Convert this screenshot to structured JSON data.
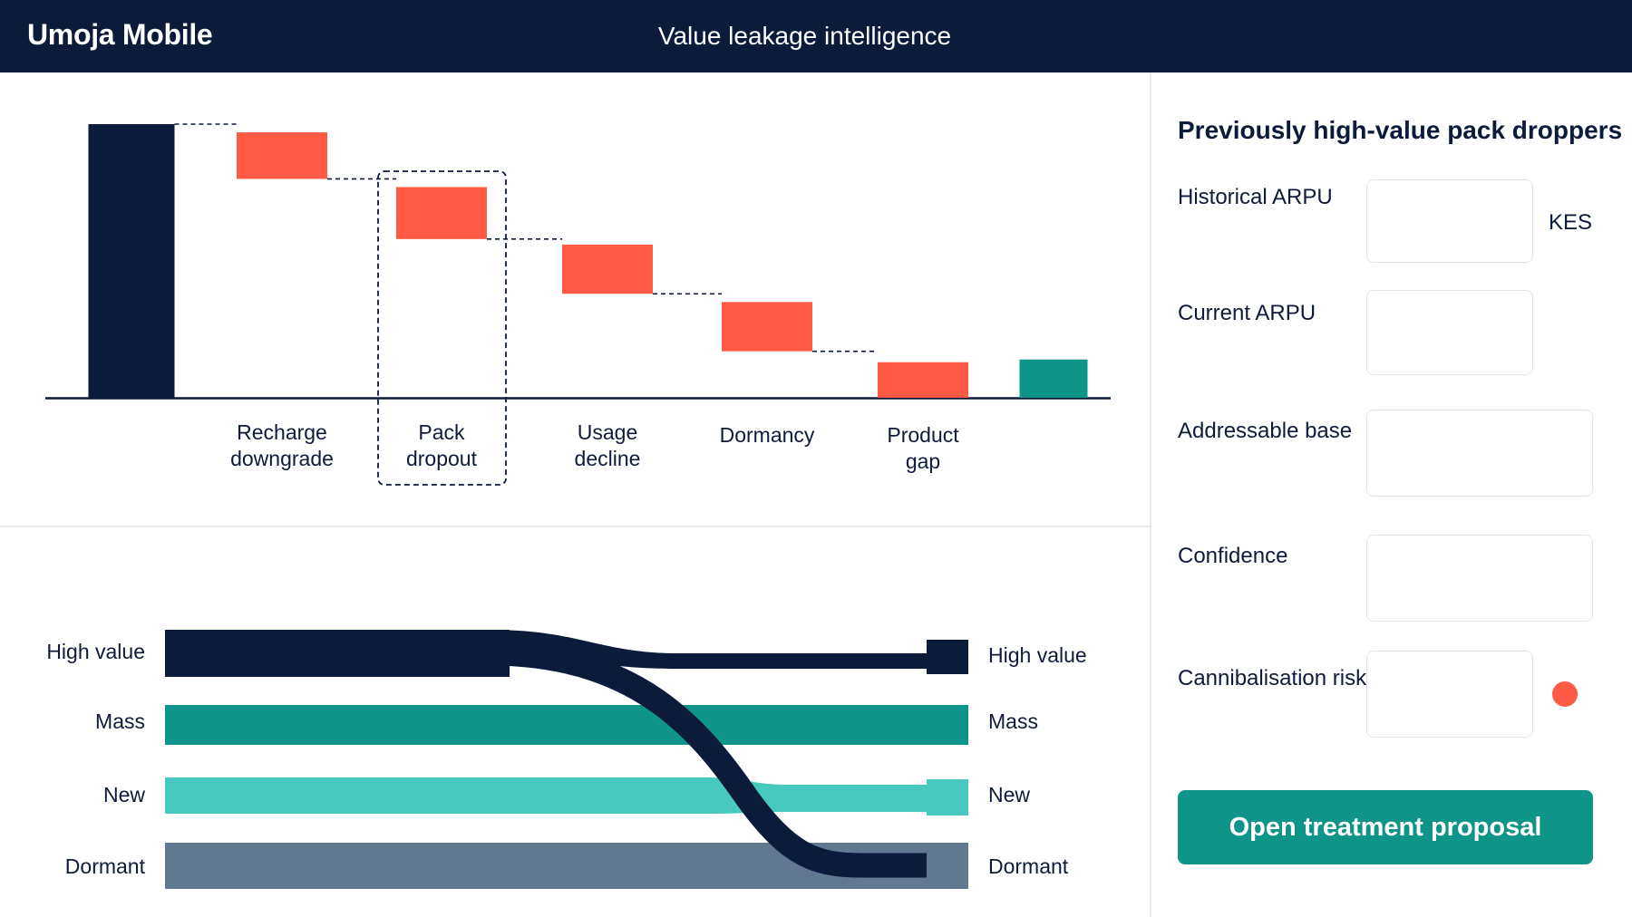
{
  "app": {
    "brand": "Umoja Mobile",
    "title": "Value leakage intelligence"
  },
  "colors": {
    "navy": "#0c1a3c",
    "coral": "#ff5a45",
    "teal": "#0f948a",
    "light_teal": "#47c9c0",
    "slate": "#627891"
  },
  "waterfall": {
    "chart_data": {
      "type": "bar",
      "subtype": "waterfall",
      "categories": [
        "",
        "Recharge downgrade",
        "Pack dropout",
        "Usage decline",
        "Dormancy",
        "Product gap",
        ""
      ],
      "category_lines": [
        [],
        [
          "Recharge",
          "downgrade"
        ],
        [
          "Pack",
          "dropout"
        ],
        [
          "Usage",
          "decline"
        ],
        [
          "Dormancy"
        ],
        [
          "Product",
          "gap"
        ],
        []
      ],
      "bars": [
        {
          "kind": "start",
          "from": 0,
          "to": 100,
          "color": "#0c1a3c"
        },
        {
          "kind": "decrease",
          "from": 97,
          "to": 80,
          "color": "#ff5a45"
        },
        {
          "kind": "decrease",
          "from": 77,
          "to": 58,
          "color": "#ff5a45"
        },
        {
          "kind": "decrease",
          "from": 56,
          "to": 38,
          "color": "#ff5a45"
        },
        {
          "kind": "decrease",
          "from": 35,
          "to": 17,
          "color": "#ff5a45"
        },
        {
          "kind": "decrease",
          "from": 13,
          "to": 0,
          "color": "#ff5a45"
        },
        {
          "kind": "end",
          "from": 0,
          "to": 14,
          "color": "#0f948a"
        }
      ],
      "highlighted_category": "Pack dropout",
      "ylim": [
        0,
        100
      ],
      "title": "",
      "xlabel": "",
      "ylabel": "",
      "grid": false
    }
  },
  "flow": {
    "chart_data": {
      "type": "sankey",
      "left_nodes": [
        "High value",
        "Mass",
        "New",
        "Dormant"
      ],
      "right_nodes": [
        "High value",
        "Mass",
        "New",
        "Dormant"
      ],
      "flows": [
        {
          "from": "High value",
          "to": "High value",
          "value": 2,
          "color": "#0c1a3c"
        },
        {
          "from": "High value",
          "to": "Dormant",
          "value": 2,
          "color": "#0c1a3c"
        },
        {
          "from": "Mass",
          "to": "Mass",
          "value": 4,
          "color": "#0f948a"
        },
        {
          "from": "New",
          "to": "New",
          "value": 3,
          "color": "#47c9c0"
        },
        {
          "from": "Dormant",
          "to": "Dormant",
          "value": 4,
          "color": "#627891"
        }
      ],
      "title": ""
    }
  },
  "panel": {
    "title": "Previously high-value pack droppers",
    "fields": {
      "historical_arpu": {
        "label": "Historical ARPU",
        "value": "",
        "unit": "KES"
      },
      "current_arpu": {
        "label": "Current ARPU",
        "value": ""
      },
      "addressable_base": {
        "label": "Addressable base",
        "value": ""
      },
      "confidence": {
        "label": "Confidence",
        "value": ""
      },
      "cannibalisation_risk": {
        "label": "Cannibalisation risk",
        "value": "",
        "indicator_color": "#ff5a45"
      }
    },
    "cta_label": "Open treatment proposal"
  }
}
